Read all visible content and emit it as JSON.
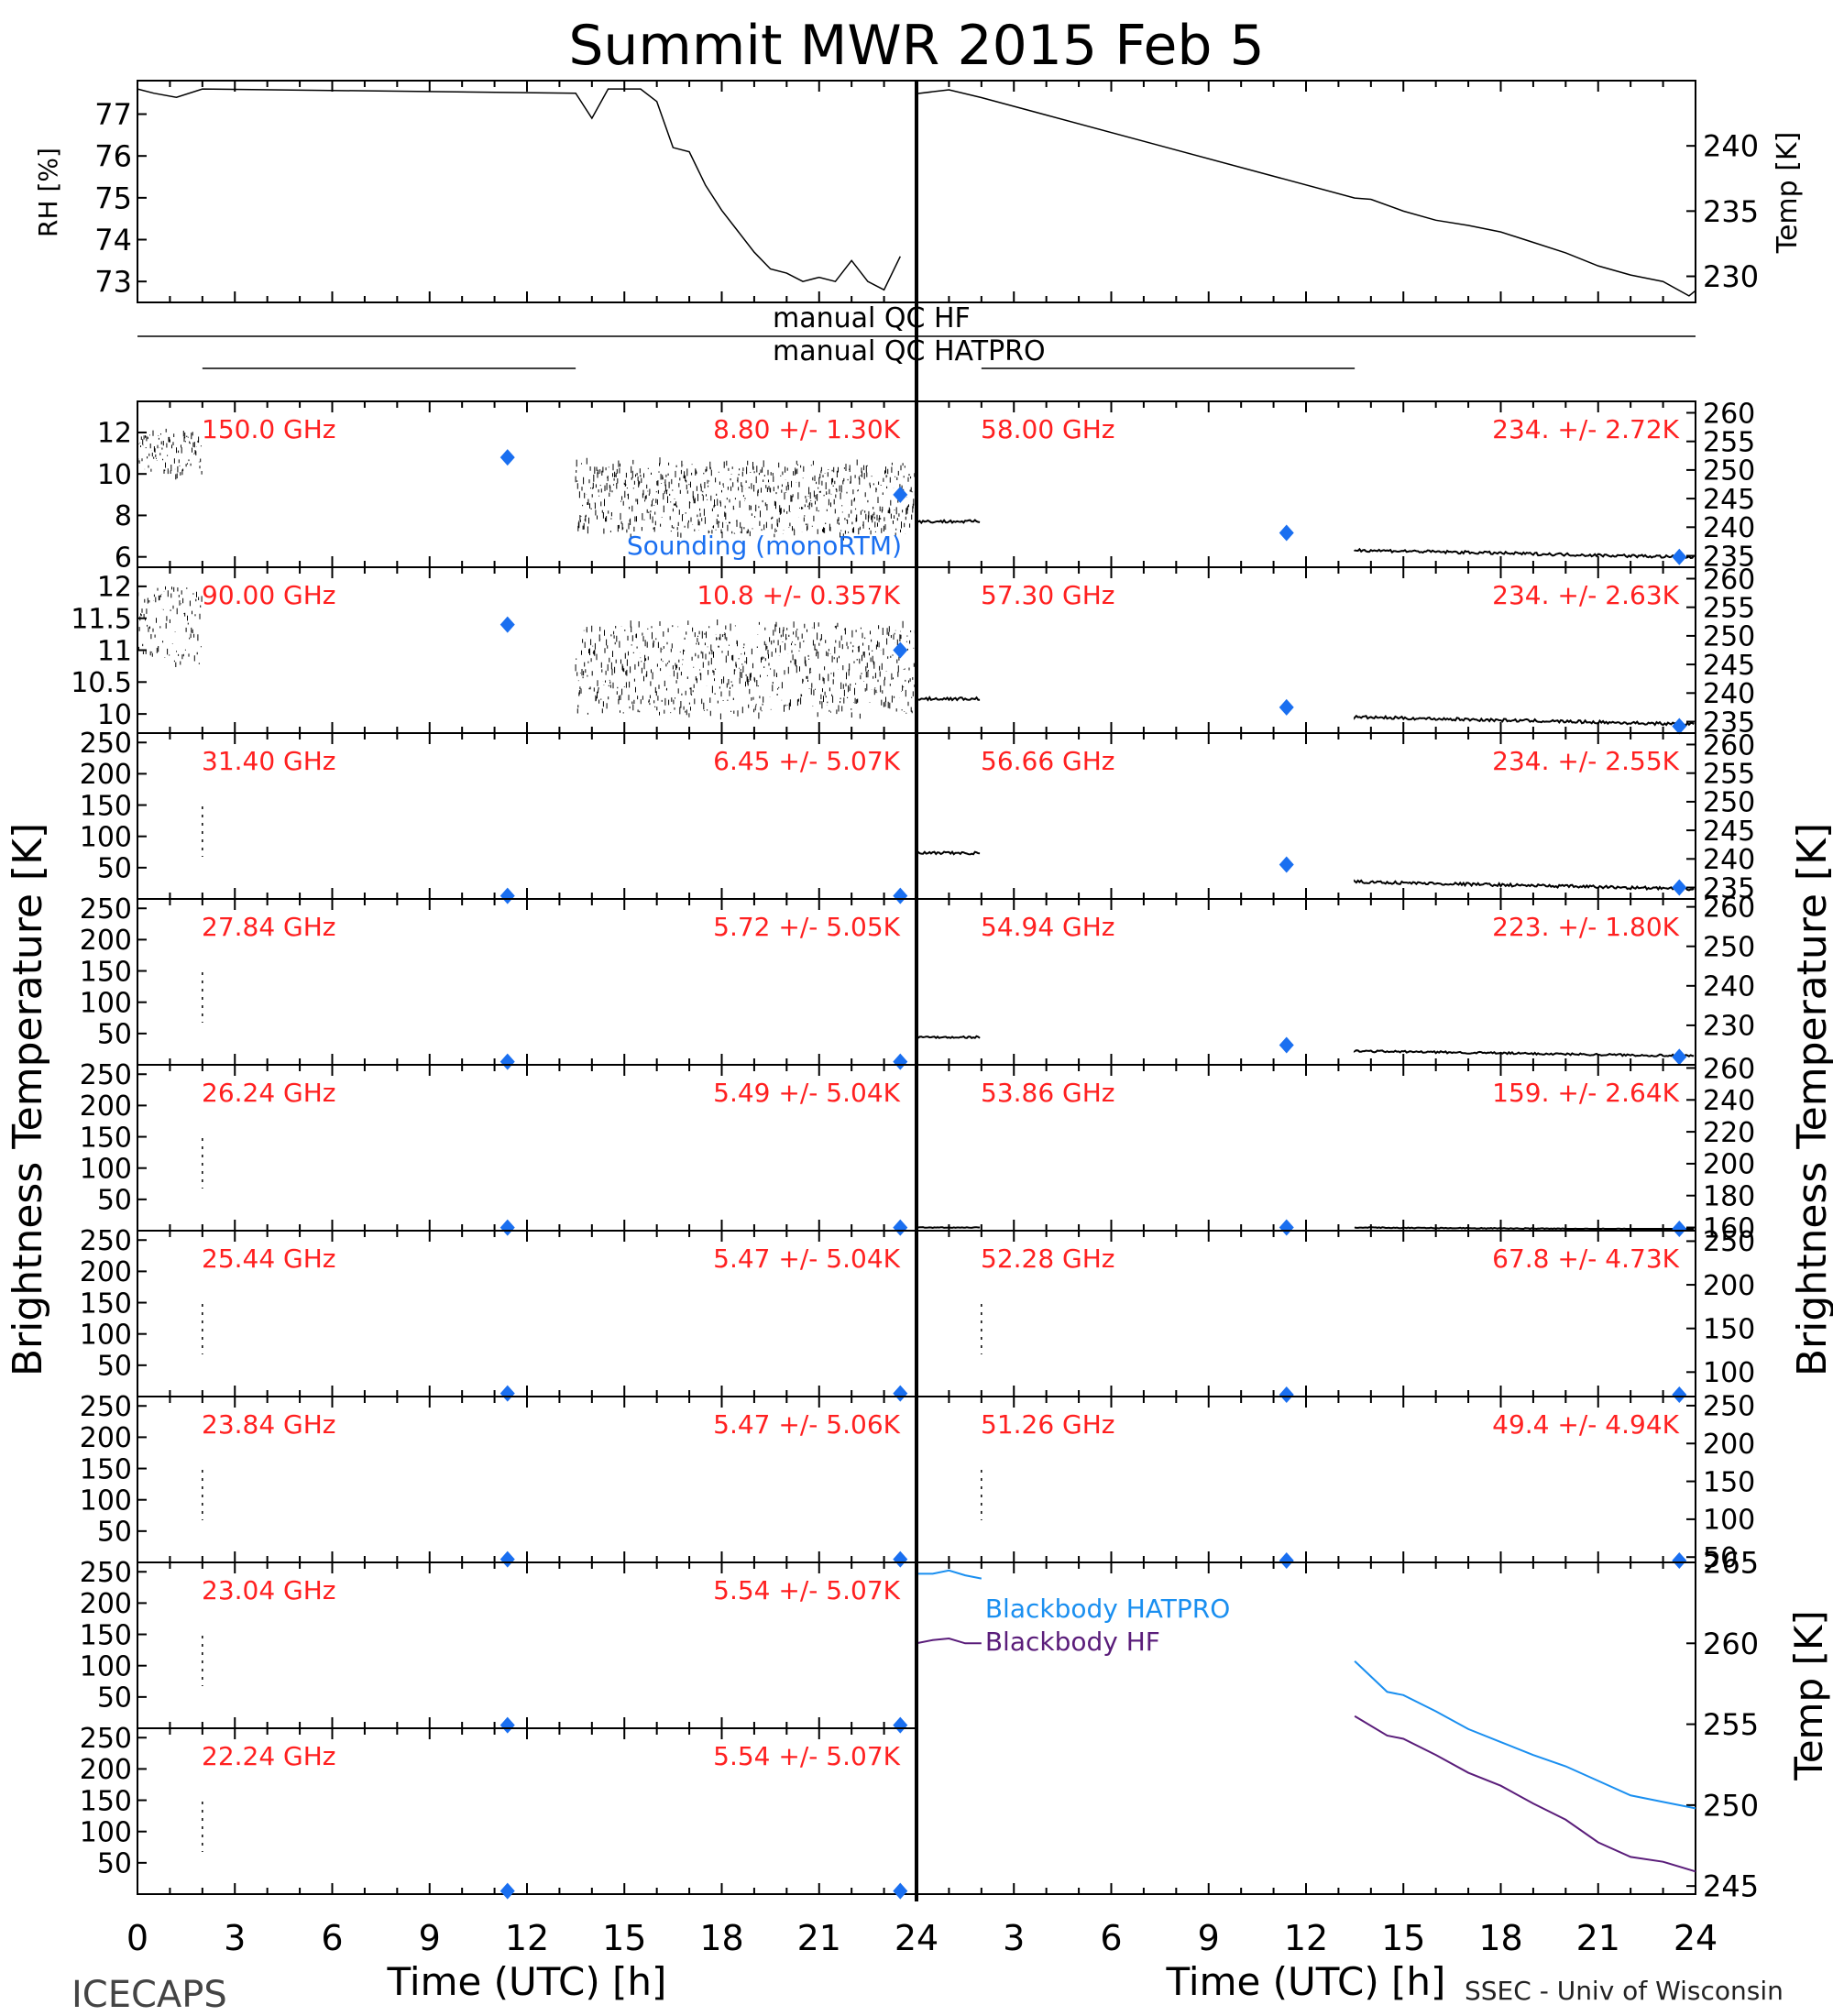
{
  "title": "Summit MWR 2015 Feb  5",
  "footer_left": "ICECAPS",
  "footer_right": "SSEC - Univ of Wisconsin",
  "xlabel": "Time (UTC) [h]",
  "ylabel_left": "Brightness Temperature [K]",
  "ylabel_right": "Brightness Temperature [K]",
  "x_ticks": [
    "0",
    "3",
    "6",
    "9",
    "12",
    "15",
    "18",
    "21",
    "24"
  ],
  "colors": {
    "label": "#ff2020",
    "sounding": "#1a6ff0",
    "trace": "#000000",
    "bb_hatpro": "#1a8ff0",
    "bb_hf": "#5a1d7a"
  },
  "chart_data": [
    {
      "type": "line",
      "panel": "rh",
      "ylabel": "RH [%]",
      "ylim": [
        72.5,
        77.8
      ],
      "yticks": [
        73,
        74,
        75,
        76,
        77
      ],
      "x": [
        0,
        0.5,
        1.2,
        2,
        13.5,
        14,
        14.5,
        15.5,
        16,
        16.5,
        17,
        17.5,
        18,
        18.5,
        19,
        19.5,
        20,
        20.5,
        21,
        21.5,
        22,
        22.5,
        23,
        23.5
      ],
      "values": [
        77.6,
        77.5,
        77.4,
        77.6,
        77.5,
        76.9,
        77.6,
        77.6,
        77.3,
        76.2,
        76.1,
        75.3,
        74.7,
        74.2,
        73.7,
        73.3,
        73.2,
        73.0,
        73.1,
        73.0,
        73.5,
        73.0,
        72.8,
        73.6
      ]
    },
    {
      "type": "line",
      "panel": "temp",
      "ylabel": "Temp [K]",
      "ylim": [
        228,
        245
      ],
      "yticks": [
        230,
        235,
        240
      ],
      "x": [
        0,
        1,
        2,
        13.5,
        14,
        15,
        16,
        17,
        18,
        19,
        20,
        21,
        22,
        23,
        23.8,
        24
      ],
      "values": [
        244,
        244.3,
        243.7,
        236.0,
        235.9,
        235.0,
        234.3,
        233.9,
        233.4,
        232.6,
        231.8,
        230.8,
        230.1,
        229.6,
        228.5,
        228.9
      ]
    },
    {
      "type": "table",
      "panel": "qc",
      "rows": [
        {
          "label": "manual QC HF",
          "flag_ranges": []
        },
        {
          "label": "manual QC HATPRO",
          "flag_ranges": [
            [
              2,
              13.5
            ],
            [
              2,
              13.5
            ]
          ]
        }
      ]
    },
    {
      "type": "scatter",
      "freq": "150.0 GHz",
      "stats": "8.80 +/-  1.30K",
      "ylim": [
        5.5,
        13.5
      ],
      "yticks": [
        6,
        8,
        10,
        12
      ],
      "mean_before": 11,
      "mean_after": 8.8,
      "noise": 1.3,
      "sounding": [
        [
          11.4,
          10.8
        ],
        [
          23.5,
          9.0
        ]
      ],
      "sounding_label": "Sounding (monoRTM)"
    },
    {
      "type": "scatter",
      "freq": "90.00 GHz",
      "stats": "10.8 +/- 0.357K",
      "ylim": [
        9.7,
        12.3
      ],
      "yticks": [
        10.0,
        10.5,
        11.0,
        11.5,
        12.0
      ],
      "mean_before": 11.4,
      "mean_after": 10.7,
      "noise": 0.36,
      "sounding": [
        [
          11.4,
          11.4
        ],
        [
          23.5,
          11.0
        ]
      ]
    },
    {
      "type": "scatter",
      "freq": "31.40 GHz",
      "stats": "6.45 +/- 5.07K",
      "ylim": [
        0,
        265
      ],
      "yticks": [
        50,
        100,
        150,
        200,
        250
      ],
      "mean_before": 6.5,
      "mean_after": 6.5,
      "noise": 5,
      "sounding": [
        [
          11.4,
          5
        ],
        [
          23.5,
          5
        ]
      ]
    },
    {
      "type": "scatter",
      "freq": "27.84 GHz",
      "stats": "5.72 +/- 5.05K",
      "ylim": [
        0,
        265
      ],
      "yticks": [
        50,
        100,
        150,
        200,
        250
      ],
      "mean_before": 5.7,
      "mean_after": 5.7,
      "noise": 5,
      "sounding": [
        [
          11.4,
          5
        ],
        [
          23.5,
          5
        ]
      ]
    },
    {
      "type": "scatter",
      "freq": "26.24 GHz",
      "stats": "5.49 +/- 5.04K",
      "ylim": [
        0,
        265
      ],
      "yticks": [
        50,
        100,
        150,
        200,
        250
      ],
      "mean_before": 5.5,
      "mean_after": 5.5,
      "noise": 5,
      "sounding": [
        [
          11.4,
          5
        ],
        [
          23.5,
          5
        ]
      ]
    },
    {
      "type": "scatter",
      "freq": "25.44 GHz",
      "stats": "5.47 +/- 5.04K",
      "ylim": [
        0,
        265
      ],
      "yticks": [
        50,
        100,
        150,
        200,
        250
      ],
      "mean_before": 5.5,
      "mean_after": 5.5,
      "noise": 5,
      "sounding": [
        [
          11.4,
          5
        ],
        [
          23.5,
          5
        ]
      ]
    },
    {
      "type": "scatter",
      "freq": "23.84 GHz",
      "stats": "5.47 +/- 5.06K",
      "ylim": [
        0,
        265
      ],
      "yticks": [
        50,
        100,
        150,
        200,
        250
      ],
      "mean_before": 5.5,
      "mean_after": 5.5,
      "noise": 5,
      "sounding": [
        [
          11.4,
          5
        ],
        [
          23.5,
          5
        ]
      ]
    },
    {
      "type": "scatter",
      "freq": "23.04 GHz",
      "stats": "5.54 +/- 5.07K",
      "ylim": [
        0,
        265
      ],
      "yticks": [
        50,
        100,
        150,
        200,
        250
      ],
      "mean_before": 5.5,
      "mean_after": 5.5,
      "noise": 5,
      "sounding": [
        [
          11.4,
          5
        ],
        [
          23.5,
          5
        ]
      ]
    },
    {
      "type": "scatter",
      "freq": "22.24 GHz",
      "stats": "5.54 +/- 5.07K",
      "ylim": [
        0,
        265
      ],
      "yticks": [
        50,
        100,
        150,
        200,
        250
      ],
      "mean_before": 5.5,
      "mean_after": 5.5,
      "noise": 5,
      "sounding": [
        [
          11.4,
          5
        ],
        [
          23.5,
          5
        ]
      ]
    },
    {
      "type": "scatter",
      "freq": "58.00 GHz",
      "stats": "234. +/- 2.72K",
      "ylim": [
        233,
        262
      ],
      "yticks": [
        235,
        240,
        245,
        250,
        255,
        260
      ],
      "mean_before": 241,
      "mean_after": 235,
      "noise": 0.3,
      "sounding": [
        [
          11.4,
          239
        ],
        [
          23.5,
          234.8
        ]
      ]
    },
    {
      "type": "scatter",
      "freq": "57.30 GHz",
      "stats": "234. +/- 2.63K",
      "ylim": [
        233,
        262
      ],
      "yticks": [
        235,
        240,
        245,
        250,
        255,
        260
      ],
      "mean_before": 239,
      "mean_after": 234.8,
      "noise": 0.3,
      "sounding": [
        [
          11.4,
          237.5
        ],
        [
          23.5,
          234.2
        ]
      ]
    },
    {
      "type": "scatter",
      "freq": "56.66 GHz",
      "stats": "234. +/- 2.55K",
      "ylim": [
        233,
        262
      ],
      "yticks": [
        235,
        240,
        245,
        250,
        255,
        260
      ],
      "mean_before": 241,
      "mean_after": 235,
      "noise": 0.3,
      "sounding": [
        [
          11.4,
          239
        ],
        [
          23.5,
          235
        ]
      ]
    },
    {
      "type": "scatter",
      "freq": "54.94 GHz",
      "stats": "223. +/- 1.80K",
      "ylim": [
        220,
        262
      ],
      "yticks": [
        230,
        240,
        250,
        260
      ],
      "mean_before": 227,
      "mean_after": 222.5,
      "noise": 0.3,
      "sounding": [
        [
          11.4,
          225
        ],
        [
          23.5,
          222
        ]
      ]
    },
    {
      "type": "scatter",
      "freq": "53.86 GHz",
      "stats": "159. +/- 2.64K",
      "ylim": [
        158,
        262
      ],
      "yticks": [
        160,
        180,
        200,
        220,
        240,
        260
      ],
      "mean_before": 160,
      "mean_after": 159,
      "noise": 0.3,
      "sounding": [
        [
          11.4,
          160
        ],
        [
          23.5,
          159
        ]
      ]
    },
    {
      "type": "scatter",
      "freq": "52.28 GHz",
      "stats": "67.8 +/- 4.73K",
      "ylim": [
        72,
        262
      ],
      "yticks": [
        100,
        150,
        200,
        250
      ],
      "mean_before": 72,
      "mean_after": 72,
      "noise": 0,
      "sounding": [
        [
          11.4,
          73
        ],
        [
          23.5,
          73
        ]
      ]
    },
    {
      "type": "scatter",
      "freq": "51.26 GHz",
      "stats": "49.4 +/- 4.94K",
      "ylim": [
        43,
        262
      ],
      "yticks": [
        50,
        100,
        150,
        200,
        250
      ],
      "mean_before": 43,
      "mean_after": 43,
      "noise": 0,
      "sounding": [
        [
          11.4,
          43
        ],
        [
          23.5,
          43
        ]
      ]
    },
    {
      "type": "line",
      "panel": "blackbody",
      "ylabel": "Temp [K]",
      "ylim": [
        244.5,
        265
      ],
      "yticks": [
        245,
        250,
        255,
        260,
        265
      ],
      "series": [
        {
          "name": "Blackbody HATPRO",
          "x": [
            0,
            0.5,
            1,
            1.5,
            2,
            13.5,
            14.5,
            15,
            16,
            17,
            18,
            19,
            20,
            21,
            22,
            23,
            24
          ],
          "values": [
            264.3,
            264.3,
            264.5,
            264.2,
            264.0,
            258.9,
            257.0,
            256.8,
            255.8,
            254.7,
            253.9,
            253.1,
            252.4,
            251.5,
            250.6,
            250.2,
            249.8
          ]
        },
        {
          "name": "Blackbody HF",
          "x": [
            0,
            0.5,
            1,
            1.5,
            2,
            13.5,
            14.5,
            15,
            16,
            17,
            18,
            19,
            20,
            21,
            22,
            23,
            24
          ],
          "values": [
            260.0,
            260.2,
            260.3,
            260.0,
            260.0,
            255.5,
            254.3,
            254.1,
            253.1,
            252.0,
            251.2,
            250.1,
            249.1,
            247.7,
            246.8,
            246.5,
            245.9
          ]
        }
      ]
    }
  ]
}
